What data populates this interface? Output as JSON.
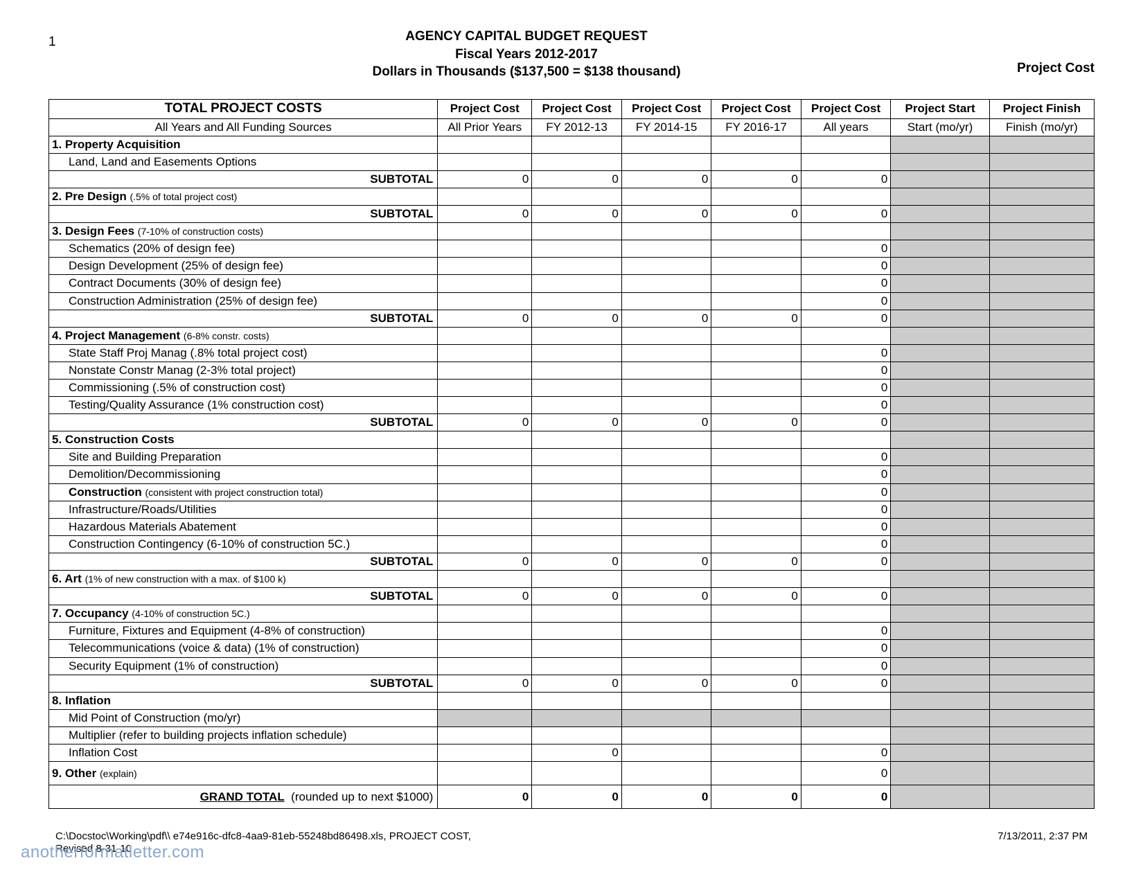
{
  "page_number": "1",
  "title_line1": "AGENCY CAPITAL BUDGET REQUEST",
  "title_line2": "Fiscal Years 2012-2017",
  "title_line3": "Dollars in Thousands ($137,500 = $138 thousand)",
  "right_label": "Project Cost",
  "colors": {
    "border": "#000000",
    "gray_fill": "#cccccc",
    "background": "#ffffff",
    "watermark": "#8aa7c7"
  },
  "columns_top": [
    "TOTAL PROJECT COSTS",
    "Project Cost",
    "Project Cost",
    "Project Cost",
    "Project Cost",
    "Project Cost",
    "Project Start",
    "Project Finish"
  ],
  "columns_sub": [
    "All Years and All Funding Sources",
    "All Prior Years",
    "FY 2012-13",
    "FY 2014-15",
    "FY 2016-17",
    "All years",
    "Start (mo/yr)",
    "Finish (mo/yr)"
  ],
  "sections": [
    {
      "num": "1.",
      "title": "Property Acquisition",
      "note": "",
      "items": [
        {
          "label": "Land, Land and Easements Options"
        }
      ],
      "subtotal": [
        "0",
        "0",
        "0",
        "0",
        "0"
      ]
    },
    {
      "num": "2.",
      "title": "Pre Design",
      "note": "(.5% of total project cost)",
      "items": [],
      "subtotal": [
        "0",
        "0",
        "0",
        "0",
        "0"
      ]
    },
    {
      "num": "3.",
      "title": "Design Fees",
      "note": "(7-10% of construction costs)",
      "items": [
        {
          "label": "Schematics (20% of design fee)",
          "ay": "0"
        },
        {
          "label": "Design Development (25% of design fee)",
          "ay": "0"
        },
        {
          "label": "Contract Documents (30% of design fee)",
          "ay": "0"
        },
        {
          "label": "Construction Administration (25% of design fee)",
          "ay": "0"
        }
      ],
      "subtotal": [
        "0",
        "0",
        "0",
        "0",
        "0"
      ]
    },
    {
      "num": "4.",
      "title": "Project Management",
      "note": "(6-8% constr. costs)",
      "items": [
        {
          "label": "State Staff Proj Manag (.8% total project cost)",
          "ay": "0"
        },
        {
          "label": "Nonstate Constr Manag (2-3% total project)",
          "ay": "0"
        },
        {
          "label": "Commissioning (.5% of construction cost)",
          "ay": "0"
        },
        {
          "label": "Testing/Quality Assurance (1% construction cost)",
          "ay": "0"
        }
      ],
      "subtotal": [
        "0",
        "0",
        "0",
        "0",
        "0"
      ]
    },
    {
      "num": "5.",
      "title": "Construction Costs",
      "note": "",
      "items": [
        {
          "label": "Site and Building Preparation",
          "ay": "0"
        },
        {
          "label": "Demolition/Decommissioning",
          "ay": "0"
        },
        {
          "label_html": "<b>Construction</b> <span class='small-note'>(consistent with project construction total)</span>",
          "ay": "0"
        },
        {
          "label": "Infrastructure/Roads/Utilities",
          "ay": "0"
        },
        {
          "label": "Hazardous Materials Abatement",
          "ay": "0"
        },
        {
          "label": "Construction Contingency (6-10% of construction 5C.)",
          "ay": "0"
        }
      ],
      "subtotal": [
        "0",
        "0",
        "0",
        "0",
        "0"
      ]
    },
    {
      "num": "6.",
      "title": "Art",
      "note": "(1% of new construction with a max. of $100 k)",
      "items": [],
      "subtotal": [
        "0",
        "0",
        "0",
        "0",
        "0"
      ]
    },
    {
      "num": "7.",
      "title": "Occupancy",
      "note": "(4-10% of construction 5C.)",
      "items": [
        {
          "label": "Furniture, Fixtures and Equipment (4-8% of construction)",
          "ay": "0"
        },
        {
          "label": "Telecommunications (voice & data) (1% of construction)",
          "ay": "0"
        },
        {
          "label": "Security Equipment (1% of construction)",
          "ay": "0"
        }
      ],
      "subtotal": [
        "0",
        "0",
        "0",
        "0",
        "0"
      ]
    },
    {
      "num": "8.",
      "title": "Inflation",
      "note": "",
      "items": [
        {
          "label": "Mid Point of Construction (mo/yr)",
          "gray_cols": true
        },
        {
          "label": "Multiplier (refer to building projects inflation schedule)"
        },
        {
          "label": "Inflation Cost",
          "c2": "0",
          "ay": "0"
        }
      ],
      "no_subtotal": true
    },
    {
      "num": "9.",
      "title": "Other",
      "note": "(explain)",
      "tall": true,
      "ay": "0",
      "items": [],
      "no_subtotal": true
    }
  ],
  "subtotal_label": "SUBTOTAL",
  "grand_total_label": "GRAND TOTAL",
  "grand_total_note": "(rounded up to next  $1000)",
  "grand_total_values": [
    "0",
    "0",
    "0",
    "0",
    "0"
  ],
  "footer_path": "C:\\Docstoc\\Working\\pdf\\\\ e74e916c-dfc8-4aa9-81eb-55248bd86498.xls,  PROJECT COST,",
  "footer_revised": "Revised 8-31-10",
  "footer_date": "7/13/2011, 2:37 PM",
  "watermark": "anotherformatletter.com"
}
